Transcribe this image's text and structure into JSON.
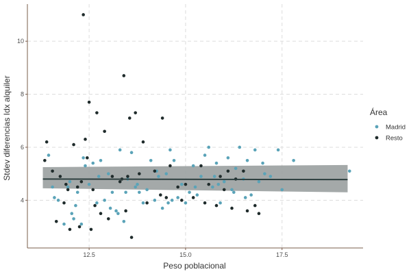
{
  "chart_data": {
    "type": "scatter",
    "xlabel": "Peso poblacional",
    "ylabel": "Stdev diferencias Idx alquiler",
    "xlim": [
      10.9,
      19.6
    ],
    "ylim": [
      2.2,
      11.4
    ],
    "x_ticks": [
      12.5,
      15.0,
      17.5
    ],
    "x_tick_labels": [
      "12.5",
      "15.0",
      "17.5"
    ],
    "y_ticks": [
      4,
      6,
      8,
      10
    ],
    "y_tick_labels": [
      "4",
      "6",
      "8",
      "10"
    ],
    "grid": true,
    "legend": {
      "title": "Área",
      "position": "right",
      "entries": [
        {
          "label": "Madrid",
          "color": "#5aa3b8"
        },
        {
          "label": "Resto",
          "color": "#1f2b2b"
        }
      ]
    },
    "trend": {
      "type": "linear",
      "x": [
        11.3,
        19.2
      ],
      "y": [
        4.8,
        4.78
      ],
      "ci_lower": [
        4.45,
        4.3
      ],
      "ci_upper": [
        5.25,
        5.33
      ],
      "line_color": "#2d3f3f",
      "band_color": "#9aa0a0"
    },
    "series": [
      {
        "name": "Madrid",
        "color": "#5aa3b8",
        "x": [
          11.45,
          11.6,
          11.85,
          11.95,
          12.05,
          12.1,
          12.2,
          12.3,
          12.4,
          12.5,
          12.6,
          12.7,
          12.8,
          12.9,
          13.0,
          13.1,
          13.2,
          13.3,
          13.4,
          13.5,
          13.6,
          13.7,
          13.8,
          13.9,
          14.0,
          14.1,
          14.2,
          14.3,
          14.4,
          14.5,
          14.6,
          14.7,
          14.8,
          14.9,
          15.0,
          15.1,
          15.2,
          15.3,
          15.4,
          15.5,
          15.6,
          15.7,
          15.8,
          15.9,
          16.0,
          16.1,
          16.2,
          16.3,
          16.4,
          16.5,
          16.6,
          16.7,
          16.8,
          16.9,
          17.0,
          17.2,
          17.4,
          17.5,
          17.8,
          19.25,
          11.7,
          12.0,
          12.35,
          12.75,
          13.05,
          13.45,
          13.75,
          14.25,
          14.65,
          15.25,
          15.75,
          16.25,
          16.55,
          17.05,
          13.25,
          14.55,
          15.85,
          11.55,
          12.15
        ],
        "y": [
          5.7,
          4.1,
          3.1,
          4.5,
          3.5,
          3.3,
          4.3,
          3.1,
          5.3,
          4.6,
          5.4,
          3.9,
          5.5,
          4.0,
          5.0,
          4.3,
          3.6,
          5.9,
          3.2,
          4.8,
          5.8,
          4.5,
          4.3,
          3.9,
          4.4,
          5.5,
          4.0,
          4.9,
          3.7,
          5.0,
          5.9,
          5.5,
          4.1,
          4.6,
          3.9,
          4.3,
          5.3,
          4.2,
          4.9,
          5.7,
          6.0,
          4.5,
          5.4,
          3.9,
          4.7,
          5.6,
          4.4,
          5.2,
          6.0,
          4.8,
          5.5,
          4.2,
          5.9,
          4.7,
          5.4,
          4.9,
          5.9,
          4.4,
          5.5,
          5.1,
          4.0,
          4.7,
          5.6,
          4.9,
          3.7,
          4.3,
          4.6,
          5.1,
          4.0,
          4.5,
          4.9,
          4.3,
          4.1,
          5.0,
          3.5,
          3.9,
          4.6,
          4.5,
          3.8
        ]
      },
      {
        "name": "Resto",
        "color": "#1f2b2b",
        "x": [
          11.35,
          11.4,
          11.55,
          11.65,
          11.75,
          11.85,
          11.9,
          12.0,
          12.1,
          12.2,
          12.25,
          12.35,
          12.4,
          12.5,
          12.55,
          12.6,
          12.7,
          12.8,
          12.9,
          13.0,
          13.1,
          13.3,
          13.4,
          13.45,
          13.5,
          13.6,
          13.7,
          13.8,
          13.9,
          14.0,
          14.2,
          14.4,
          14.5,
          14.6,
          14.8,
          14.9,
          15.0,
          15.2,
          15.4,
          15.5,
          15.6,
          15.8,
          15.9,
          16.0,
          16.1,
          16.2,
          16.3,
          16.5,
          16.6,
          16.8,
          16.9,
          13.35,
          11.95,
          12.45,
          12.65,
          13.55,
          14.35,
          12.3
        ],
        "y": [
          5.5,
          6.2,
          5.1,
          3.2,
          4.9,
          3.9,
          4.6,
          2.9,
          6.1,
          4.5,
          3.0,
          11.0,
          6.3,
          7.7,
          2.9,
          4.4,
          7.3,
          3.5,
          6.6,
          3.3,
          4.9,
          4.7,
          8.7,
          3.6,
          4.9,
          2.6,
          7.3,
          5.0,
          6.2,
          3.9,
          5.1,
          7.1,
          4.1,
          5.3,
          4.5,
          4.0,
          4.6,
          4.1,
          5.3,
          3.9,
          4.6,
          3.8,
          4.9,
          4.4,
          5.1,
          3.7,
          4.8,
          5.1,
          3.6,
          3.8,
          3.5,
          4.8,
          4.4,
          5.6,
          3.8,
          7.1,
          4.2,
          4.7
        ]
      }
    ]
  }
}
